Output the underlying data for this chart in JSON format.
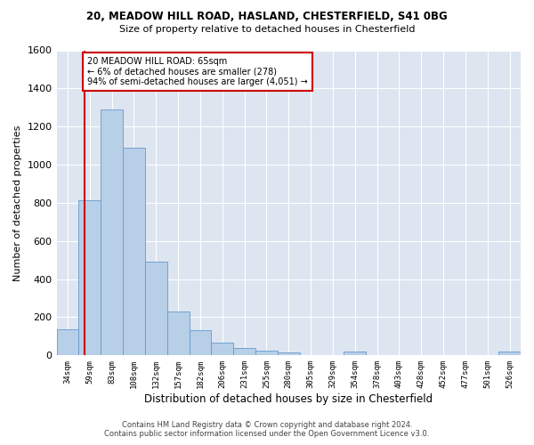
{
  "title_line1": "20, MEADOW HILL ROAD, HASLAND, CHESTERFIELD, S41 0BG",
  "title_line2": "Size of property relative to detached houses in Chesterfield",
  "xlabel": "Distribution of detached houses by size in Chesterfield",
  "ylabel": "Number of detached properties",
  "bar_color": "#b8cfe8",
  "bar_edge_color": "#6699cc",
  "bg_color": "#dde5f0",
  "grid_color": "#ffffff",
  "categories": [
    "34sqm",
    "59sqm",
    "83sqm",
    "108sqm",
    "132sqm",
    "157sqm",
    "182sqm",
    "206sqm",
    "231sqm",
    "255sqm",
    "280sqm",
    "305sqm",
    "329sqm",
    "354sqm",
    "378sqm",
    "403sqm",
    "428sqm",
    "452sqm",
    "477sqm",
    "501sqm",
    "526sqm"
  ],
  "values": [
    135,
    815,
    1290,
    1090,
    490,
    230,
    130,
    65,
    38,
    27,
    15,
    0,
    0,
    18,
    0,
    0,
    0,
    0,
    0,
    0,
    18
  ],
  "ylim": [
    0,
    1600
  ],
  "yticks": [
    0,
    200,
    400,
    600,
    800,
    1000,
    1200,
    1400,
    1600
  ],
  "annotation_text": "20 MEADOW HILL ROAD: 65sqm\n← 6% of detached houses are smaller (278)\n94% of semi-detached houses are larger (4,051) →",
  "annotation_box_color": "#ffffff",
  "annotation_border_color": "#cc0000",
  "red_line_color": "#cc0000",
  "footer_line1": "Contains HM Land Registry data © Crown copyright and database right 2024.",
  "footer_line2": "Contains public sector information licensed under the Open Government Licence v3.0."
}
